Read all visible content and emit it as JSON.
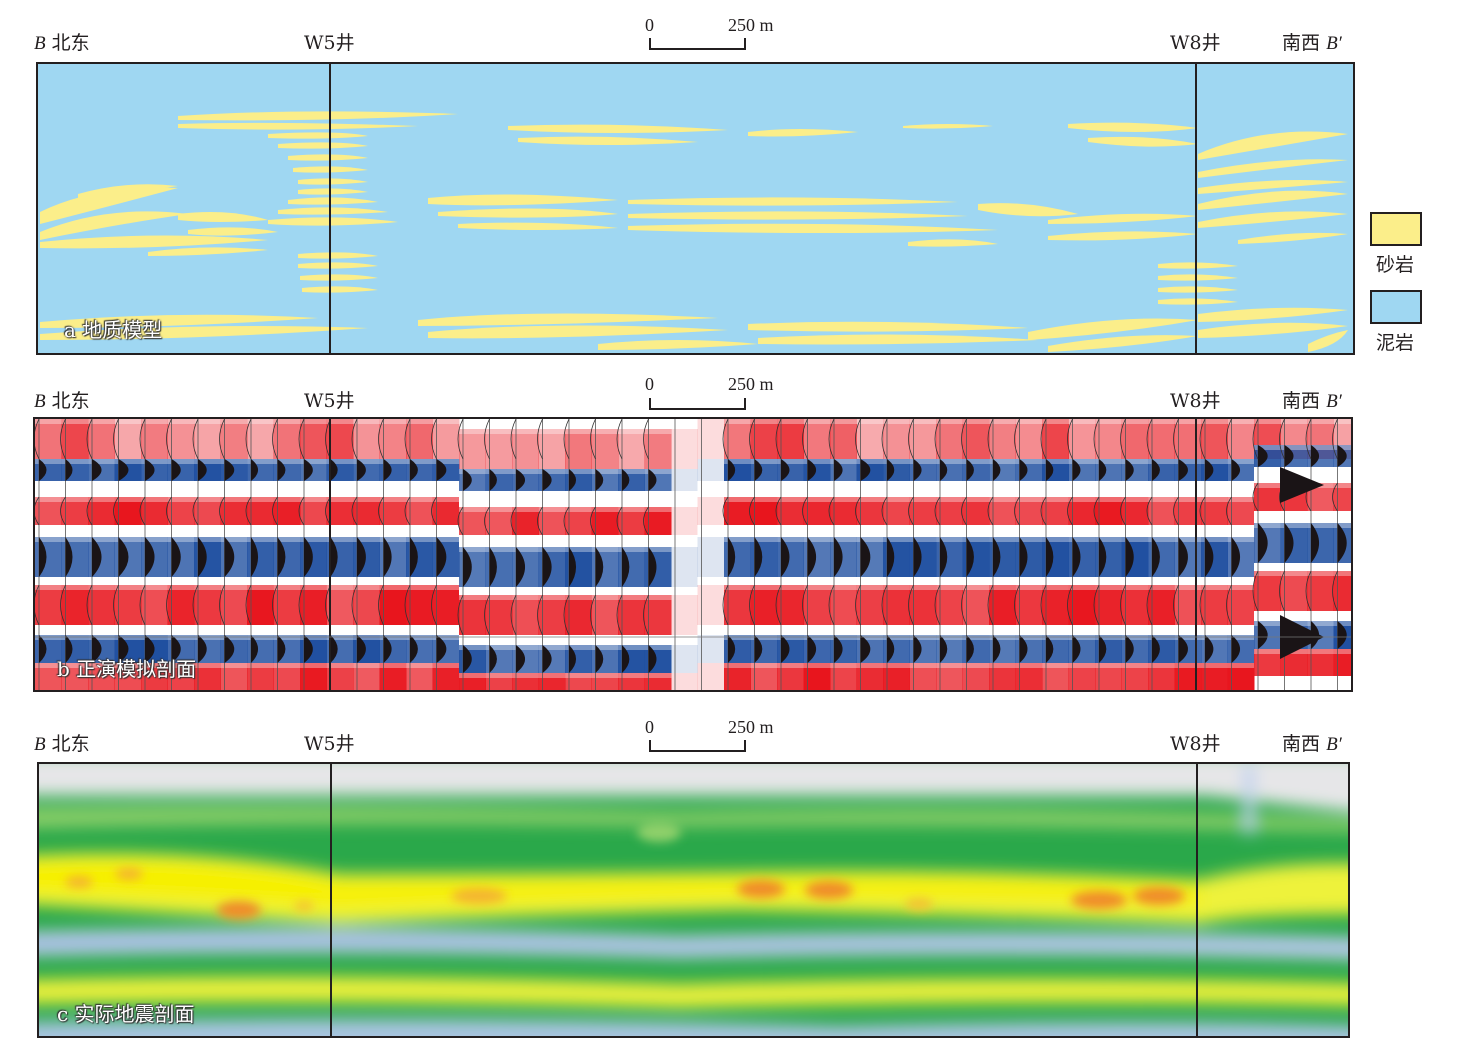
{
  "panels": [
    {
      "id": "a",
      "caption": "a 地质模型",
      "left_label": "北东",
      "left_letter": "B",
      "right_label": "南西",
      "right_letter": "B′",
      "well1": "W5井",
      "well2": "W8井",
      "scale_zero": "0",
      "scale_end": "250 m"
    },
    {
      "id": "b",
      "caption": "b 正演模拟剖面",
      "left_label": "北东",
      "left_letter": "B",
      "right_label": "南西",
      "right_letter": "B′",
      "well1": "W5井",
      "well2": "W8井",
      "scale_zero": "0",
      "scale_end": "250 m"
    },
    {
      "id": "c",
      "caption": "c 实际地震剖面",
      "left_label": "北东",
      "left_letter": "B",
      "right_label": "南西",
      "right_letter": "B′",
      "well1": "W5井",
      "well2": "W8井",
      "scale_zero": "0",
      "scale_end": "250 m"
    }
  ],
  "legend": [
    {
      "label": "砂岩",
      "color": "#fbee8a"
    },
    {
      "label": "泥岩",
      "color": "#9fd7f2"
    }
  ],
  "colors": {
    "mudstone": "#9fd7f2",
    "sandstone": "#fbee8a",
    "peak_red": "#e8141c",
    "trough_blue": "#1f4fa0",
    "seis_green": "#2aa84a",
    "seis_yellow": "#f6f000",
    "seis_grey": "#e6e6e8"
  }
}
